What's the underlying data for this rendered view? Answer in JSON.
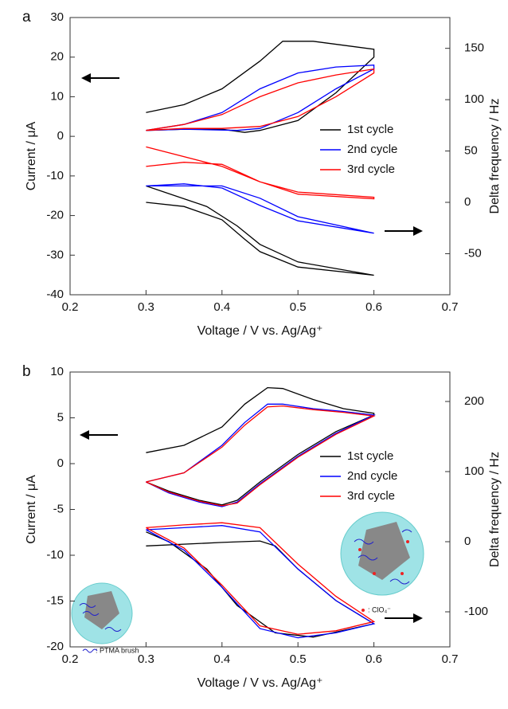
{
  "chart_data": [
    {
      "type": "line",
      "panel_label": "a",
      "xlabel": "Voltage / V vs. Ag/Ag⁺",
      "ylabel": "Current / μA",
      "y2label": "Delta frequency / Hz",
      "xlim": [
        0.2,
        0.7
      ],
      "xticks": [
        0.2,
        0.3,
        0.4,
        0.5,
        0.6,
        0.7
      ],
      "ylim": [
        -40,
        30
      ],
      "yticks": [
        -40,
        -30,
        -20,
        -10,
        0,
        10,
        20,
        30
      ],
      "y2lim": [
        -90,
        180
      ],
      "y2ticks": [
        -50,
        0,
        50,
        100,
        150
      ],
      "legend": "right",
      "series": [
        {
          "name": "1st  cycle",
          "color": "#000000",
          "x": [
            0.3,
            0.35,
            0.4,
            0.45,
            0.48,
            0.52,
            0.56,
            0.6,
            0.6,
            0.55,
            0.5,
            0.45,
            0.43,
            0.4,
            0.35,
            0.3
          ],
          "values": [
            6,
            8,
            12,
            19,
            24,
            24,
            23,
            22,
            20,
            11,
            4,
            1.5,
            1,
            1.8,
            1.8,
            1.5
          ]
        },
        {
          "name": "2nd cycle",
          "color": "#0000ff",
          "x": [
            0.3,
            0.35,
            0.4,
            0.45,
            0.5,
            0.55,
            0.6,
            0.6,
            0.55,
            0.5,
            0.45,
            0.42,
            0.35,
            0.3
          ],
          "values": [
            1.5,
            3,
            6,
            12,
            16,
            17.5,
            18,
            17,
            12,
            6,
            2,
            1.5,
            1.8,
            1.5
          ]
        },
        {
          "name": "3rd  cycle",
          "color": "#ff0000",
          "x": [
            0.3,
            0.35,
            0.4,
            0.45,
            0.5,
            0.55,
            0.6,
            0.6,
            0.55,
            0.5,
            0.45,
            0.4,
            0.35,
            0.3
          ],
          "values": [
            1.5,
            3,
            5.5,
            10,
            13.5,
            15.5,
            17,
            16,
            10,
            5,
            2.5,
            2,
            2,
            1.5
          ]
        },
        {
          "color": "#000000",
          "axis": "y2",
          "x": [
            0.3,
            0.35,
            0.4,
            0.43,
            0.45,
            0.5,
            0.6,
            0.5,
            0.45,
            0.42,
            0.38,
            0.3
          ],
          "values": [
            0,
            -4,
            -17,
            -36,
            -48,
            -63,
            -71,
            -58,
            -41,
            -23,
            -4,
            16
          ]
        },
        {
          "color": "#0000ff",
          "axis": "y2",
          "x": [
            0.3,
            0.35,
            0.4,
            0.45,
            0.5,
            0.6,
            0.5,
            0.45,
            0.4,
            0.3
          ],
          "values": [
            16,
            18,
            14,
            -3,
            -18,
            -30,
            -14,
            4,
            16,
            16
          ]
        },
        {
          "color": "#ff0000",
          "axis": "y2",
          "x": [
            0.3,
            0.4,
            0.45,
            0.5,
            0.6,
            0.6,
            0.5,
            0.45,
            0.4,
            0.35,
            0.3
          ],
          "values": [
            54,
            35,
            20,
            10,
            5,
            3.5,
            8,
            20,
            37,
            39,
            35
          ]
        }
      ]
    },
    {
      "type": "line",
      "panel_label": "b",
      "xlabel": "Voltage / V vs. Ag/Ag⁺",
      "ylabel": "Current / μA",
      "y2label": "Delta frequency / Hz",
      "xlim": [
        0.2,
        0.7
      ],
      "xticks": [
        0.2,
        0.3,
        0.4,
        0.5,
        0.6,
        0.7
      ],
      "ylim": [
        -20,
        10
      ],
      "yticks": [
        -20,
        -15,
        -10,
        -5,
        0,
        5,
        10
      ],
      "y2lim": [
        -150,
        242
      ],
      "y2ticks": [
        -100,
        0,
        100,
        200
      ],
      "legend": "right",
      "annotations": [
        ": PTMA brush",
        ": ClO₄⁻"
      ],
      "series": [
        {
          "name": "1st  cycle",
          "color": "#000000",
          "x": [
            0.3,
            0.35,
            0.4,
            0.43,
            0.46,
            0.48,
            0.52,
            0.56,
            0.6,
            0.6,
            0.55,
            0.5,
            0.45,
            0.42,
            0.4,
            0.37,
            0.33,
            0.3
          ],
          "values": [
            1.2,
            2,
            4,
            6.5,
            8.3,
            8.2,
            7,
            6,
            5.5,
            5.3,
            3.5,
            1,
            -2,
            -4,
            -4.5,
            -4,
            -3,
            -2
          ]
        },
        {
          "name": "2nd cycle",
          "color": "#0000ff",
          "x": [
            0.3,
            0.35,
            0.4,
            0.43,
            0.46,
            0.48,
            0.52,
            0.56,
            0.6,
            0.6,
            0.55,
            0.5,
            0.45,
            0.42,
            0.4,
            0.37,
            0.33,
            0.3
          ],
          "values": [
            -2,
            -1,
            2,
            4.5,
            6.5,
            6.5,
            6,
            5.7,
            5.3,
            5.3,
            3.3,
            0.8,
            -2.2,
            -4.2,
            -4.7,
            -4.2,
            -3.2,
            -2
          ]
        },
        {
          "name": "3rd  cycle",
          "color": "#ff0000",
          "x": [
            0.3,
            0.35,
            0.4,
            0.43,
            0.46,
            0.48,
            0.52,
            0.56,
            0.6,
            0.6,
            0.55,
            0.5,
            0.45,
            0.42,
            0.4,
            0.37,
            0.33,
            0.3
          ],
          "values": [
            -2,
            -1,
            1.8,
            4.2,
            6.2,
            6.3,
            5.9,
            5.6,
            5.2,
            5.2,
            3.2,
            0.7,
            -2.3,
            -4.3,
            -4.6,
            -4.1,
            -3.1,
            -2
          ]
        },
        {
          "color": "#000000",
          "axis": "y2",
          "x": [
            0.3,
            0.4,
            0.45,
            0.47,
            0.5,
            0.55,
            0.6,
            0.52,
            0.47,
            0.42,
            0.38,
            0.33,
            0.3
          ],
          "values": [
            -6,
            -1,
            1,
            -6,
            -39,
            -84,
            -117,
            -136,
            -130,
            -91,
            -39,
            0,
            14
          ]
        },
        {
          "color": "#0000ff",
          "axis": "y2",
          "x": [
            0.3,
            0.35,
            0.4,
            0.45,
            0.5,
            0.55,
            0.6,
            0.55,
            0.5,
            0.45,
            0.4,
            0.35,
            0.3
          ],
          "values": [
            17,
            20,
            23,
            14,
            -39,
            -84,
            -117,
            -130,
            -137,
            -124,
            -65,
            -12,
            17
          ]
        },
        {
          "color": "#ff0000",
          "axis": "y2",
          "x": [
            0.3,
            0.35,
            0.4,
            0.45,
            0.5,
            0.55,
            0.6,
            0.55,
            0.5,
            0.45,
            0.4,
            0.35,
            0.3
          ],
          "values": [
            20,
            24,
            27,
            20,
            -32,
            -78,
            -114,
            -127,
            -132,
            -120,
            -62,
            -9,
            20
          ]
        }
      ]
    }
  ]
}
